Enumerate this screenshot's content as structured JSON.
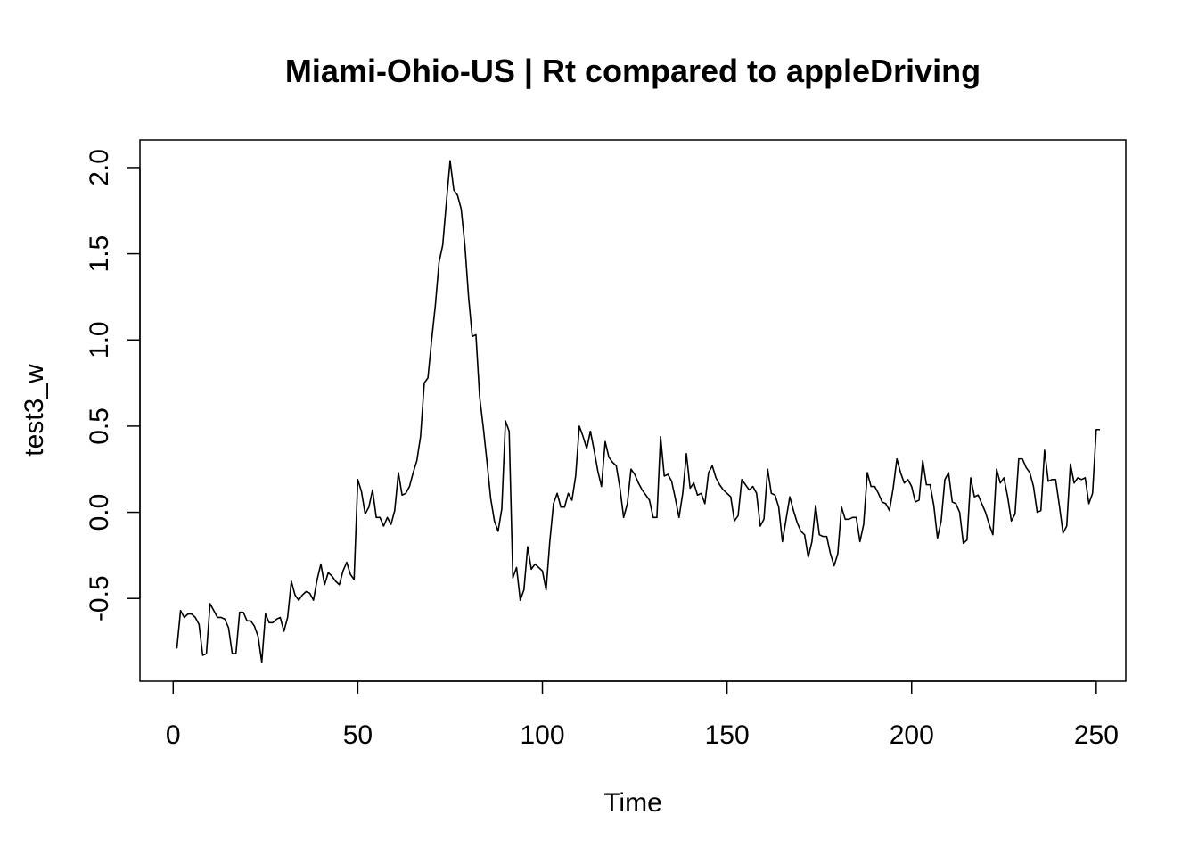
{
  "chart_data": {
    "type": "line",
    "title": "Miami-Ohio-US | Rt compared to appleDriving",
    "xlabel": "Time",
    "ylabel": "test3_w",
    "xlim": [
      -9,
      258
    ],
    "ylim": [
      -0.98,
      2.16
    ],
    "x_ticks": [
      0,
      50,
      100,
      150,
      200,
      250
    ],
    "x_tick_labels": [
      "0",
      "50",
      "100",
      "150",
      "200",
      "250"
    ],
    "y_ticks": [
      -0.5,
      0.0,
      0.5,
      1.0,
      1.5,
      2.0
    ],
    "y_tick_labels": [
      "-0.5",
      "0.0",
      "0.5",
      "1.0",
      "1.5",
      "2.0"
    ],
    "grid": false,
    "legend": "none",
    "series": [
      {
        "x_start": 1,
        "values": [
          -0.79,
          -0.57,
          -0.61,
          -0.59,
          -0.59,
          -0.61,
          -0.65,
          -0.83,
          -0.82,
          -0.53,
          -0.57,
          -0.61,
          -0.61,
          -0.62,
          -0.67,
          -0.82,
          -0.82,
          -0.58,
          -0.58,
          -0.63,
          -0.63,
          -0.66,
          -0.72,
          -0.87,
          -0.59,
          -0.64,
          -0.64,
          -0.62,
          -0.61,
          -0.69,
          -0.61,
          -0.4,
          -0.48,
          -0.51,
          -0.48,
          -0.46,
          -0.47,
          -0.51,
          -0.39,
          -0.3,
          -0.42,
          -0.35,
          -0.37,
          -0.4,
          -0.42,
          -0.34,
          -0.29,
          -0.36,
          -0.39,
          0.19,
          0.12,
          -0.01,
          0.03,
          0.13,
          -0.03,
          -0.03,
          -0.08,
          -0.03,
          -0.07,
          0.01,
          0.23,
          0.1,
          0.11,
          0.15,
          0.23,
          0.3,
          0.44,
          0.75,
          0.78,
          1.0,
          1.2,
          1.45,
          1.55,
          1.8,
          2.04,
          1.87,
          1.84,
          1.76,
          1.55,
          1.25,
          1.02,
          1.03,
          0.67,
          0.49,
          0.29,
          0.08,
          -0.05,
          -0.11,
          0.02,
          0.53,
          0.47,
          -0.38,
          -0.32,
          -0.51,
          -0.45,
          -0.2,
          -0.33,
          -0.3,
          -0.32,
          -0.34,
          -0.45,
          -0.17,
          0.05,
          0.11,
          0.03,
          0.03,
          0.11,
          0.07,
          0.21,
          0.5,
          0.44,
          0.37,
          0.47,
          0.36,
          0.24,
          0.15,
          0.41,
          0.32,
          0.29,
          0.27,
          0.14,
          -0.03,
          0.05,
          0.25,
          0.22,
          0.17,
          0.13,
          0.1,
          0.07,
          -0.03,
          -0.03,
          0.44,
          0.21,
          0.22,
          0.18,
          0.08,
          -0.03,
          0.11,
          0.34,
          0.14,
          0.17,
          0.1,
          0.11,
          0.05,
          0.23,
          0.27,
          0.2,
          0.16,
          0.13,
          0.11,
          0.09,
          -0.05,
          -0.02,
          0.19,
          0.16,
          0.13,
          0.15,
          0.11,
          -0.08,
          -0.04,
          0.25,
          0.11,
          0.1,
          0.03,
          -0.17,
          -0.04,
          0.09,
          0.01,
          -0.06,
          -0.11,
          -0.13,
          -0.26,
          -0.17,
          0.04,
          -0.13,
          -0.14,
          -0.14,
          -0.24,
          -0.31,
          -0.24,
          0.03,
          -0.04,
          -0.04,
          -0.03,
          -0.03,
          -0.17,
          -0.07,
          0.23,
          0.15,
          0.15,
          0.11,
          0.06,
          0.05,
          0.01,
          0.14,
          0.31,
          0.23,
          0.17,
          0.19,
          0.15,
          0.06,
          0.07,
          0.3,
          0.16,
          0.16,
          0.04,
          -0.15,
          -0.05,
          0.19,
          0.23,
          0.06,
          0.05,
          0.0,
          -0.18,
          -0.16,
          0.2,
          0.09,
          0.1,
          0.05,
          0.0,
          -0.07,
          -0.13,
          0.25,
          0.17,
          0.2,
          0.09,
          -0.05,
          -0.01,
          0.31,
          0.31,
          0.26,
          0.23,
          0.15,
          0.0,
          0.01,
          0.36,
          0.18,
          0.19,
          0.19,
          0.04,
          -0.12,
          -0.08,
          0.28,
          0.17,
          0.2,
          0.19,
          0.2,
          0.05,
          0.11,
          0.48,
          0.48
        ]
      }
    ]
  }
}
